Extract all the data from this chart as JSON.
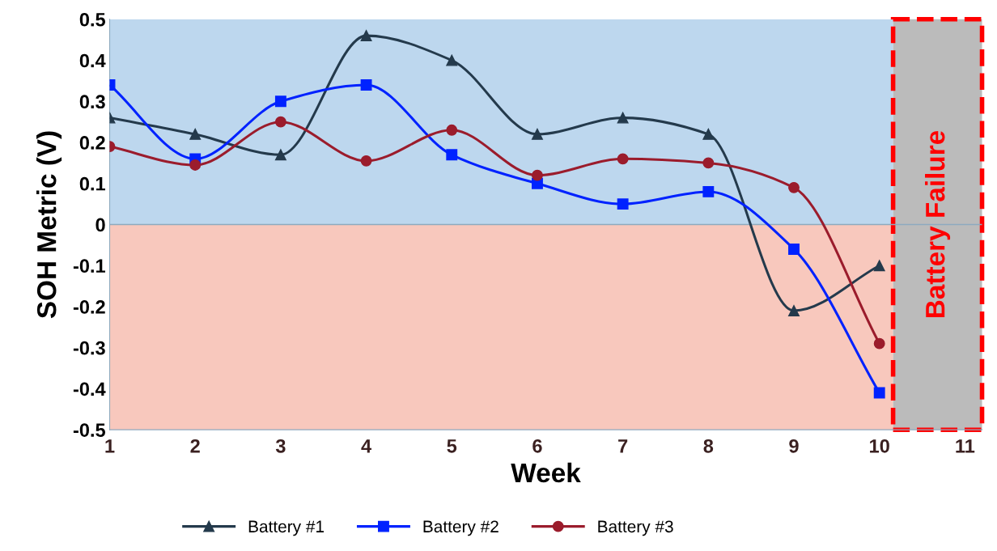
{
  "chart_data": {
    "type": "line",
    "xlabel": "Week",
    "ylabel": "SOH Metric (V)",
    "x": [
      1,
      2,
      3,
      4,
      5,
      6,
      7,
      8,
      9,
      10
    ],
    "series": [
      {
        "name": "Battery #1",
        "color": "#243a4c",
        "marker": "triangle",
        "values": [
          0.26,
          0.22,
          0.17,
          0.46,
          0.4,
          0.22,
          0.26,
          0.22,
          -0.21,
          -0.1
        ]
      },
      {
        "name": "Battery #2",
        "color": "#0022ff",
        "marker": "square",
        "values": [
          0.34,
          0.16,
          0.3,
          0.34,
          0.17,
          0.1,
          0.05,
          0.08,
          -0.06,
          -0.41
        ]
      },
      {
        "name": "Battery #3",
        "color": "#9b1c2c",
        "marker": "circle",
        "values": [
          0.19,
          0.145,
          0.25,
          0.155,
          0.23,
          0.12,
          0.16,
          0.15,
          0.09,
          -0.29
        ]
      }
    ],
    "xlim": [
      1,
      11.2
    ],
    "xticks": [
      1,
      2,
      3,
      4,
      5,
      6,
      7,
      8,
      9,
      10,
      11
    ],
    "ylim": [
      -0.5,
      0.5
    ],
    "yticks": [
      -0.5,
      -0.4,
      -0.3,
      -0.2,
      -0.1,
      0,
      0.1,
      0.2,
      0.3,
      0.4,
      0.5
    ],
    "bands": [
      {
        "axis": "y",
        "from": 0,
        "to": 0.5,
        "color": "#bdd7ee"
      },
      {
        "axis": "y",
        "from": -0.5,
        "to": 0,
        "color": "#f8c8bd"
      },
      {
        "axis": "x",
        "from": 10.16,
        "to": 11.2,
        "color": "#bbbbbb",
        "label": "Battery Failure"
      }
    ],
    "ref_lines": [
      {
        "axis": "y",
        "value": 0,
        "color": "#8eaabf"
      }
    ],
    "grid": false,
    "legend": "bottom",
    "line_style": "solid"
  }
}
